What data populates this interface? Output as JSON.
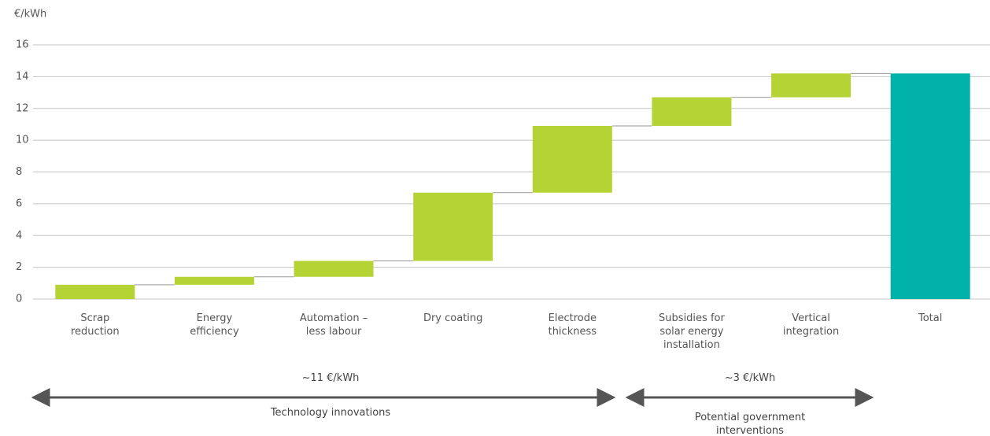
{
  "chart_data": {
    "type": "waterfall",
    "y_label": "€/kWh",
    "categories": [
      "Scrap\nreduction",
      "Energy\nefficiency",
      "Automation –\nless labour",
      "Dry coating",
      "Electrode\nthickness",
      "Subsidies for\nsolar energy\ninstallation",
      "Vertical\nintegration",
      "Total"
    ],
    "values": [
      0.9,
      0.5,
      1.0,
      4.3,
      4.2,
      1.8,
      1.5,
      14.2
    ],
    "is_total": [
      false,
      false,
      false,
      false,
      false,
      false,
      false,
      true
    ],
    "color": "#b5d334",
    "total_color": "#00b2a9",
    "ylim": [
      0,
      16
    ],
    "yticks": [
      0,
      2,
      4,
      6,
      8,
      10,
      12,
      14,
      16
    ],
    "grid": true,
    "annotations": [
      {
        "label": "~11 €/kWh",
        "text": "Technology innovations"
      },
      {
        "label": "~3 €/kWh",
        "text": "Potential government\ninterventions"
      }
    ]
  }
}
